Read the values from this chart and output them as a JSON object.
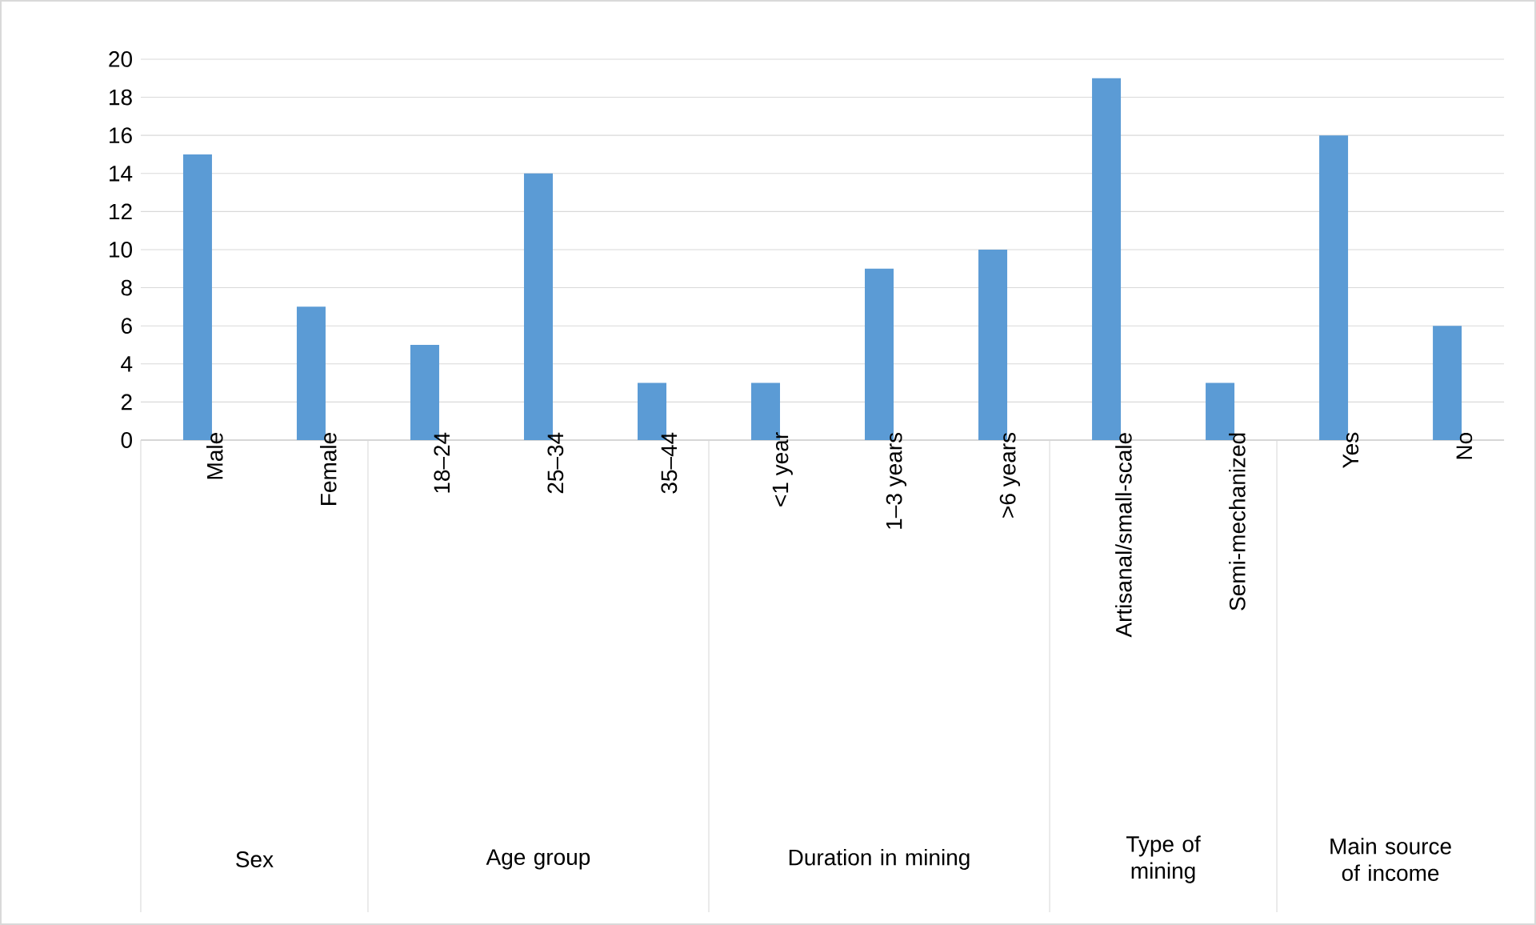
{
  "chart_data": {
    "type": "bar",
    "categories": [
      "Male",
      "Female",
      "18–24",
      "25–34",
      "35–44",
      "<1 year",
      "1–3 years",
      ">6 years",
      "Artisanal/small-scale",
      "Semi-mechanized",
      "Yes",
      "No"
    ],
    "values": [
      15,
      7,
      5,
      14,
      3,
      3,
      9,
      10,
      19,
      3,
      16,
      6
    ],
    "color": "#5b9bd5",
    "ylim": [
      0,
      20
    ],
    "yticks": [
      0,
      2,
      4,
      6,
      8,
      10,
      12,
      14,
      16,
      18,
      20
    ],
    "grid": "y",
    "annotations": [
      "Sex",
      "Age group",
      "Duration in mining",
      "Type of mining",
      "Main source of income"
    ]
  }
}
